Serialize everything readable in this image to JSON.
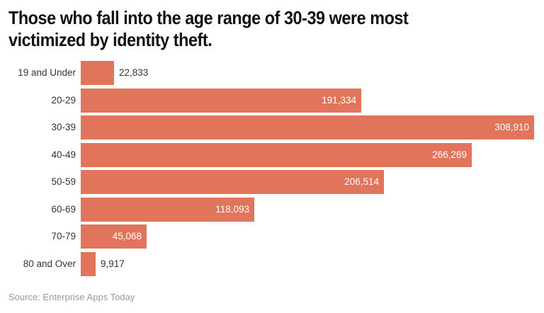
{
  "title": "Those who fall into the age range of 30-39 were most victimized by identity theft.",
  "source": "Source: Enterprise Apps Today",
  "colors": {
    "bar": "#e0755c"
  },
  "chart_data": {
    "type": "bar",
    "orientation": "horizontal",
    "title": "Those who fall into the age range of 30-39 were most victimized by identity theft.",
    "xlabel": "",
    "ylabel": "",
    "categories": [
      "19 and Under",
      "20-29",
      "30-39",
      "40-49",
      "50-59",
      "60-69",
      "70-79",
      "80 and Over"
    ],
    "values": [
      22833,
      191334,
      308910,
      266269,
      206514,
      118093,
      45068,
      9917
    ],
    "value_labels": [
      "22,833",
      "191,334",
      "308,910",
      "266,269",
      "206,514",
      "118,093",
      "45,068",
      "9,917"
    ],
    "xlim": [
      0,
      308910
    ],
    "grid": false,
    "legend": false,
    "source": "Source: Enterprise Apps Today"
  }
}
